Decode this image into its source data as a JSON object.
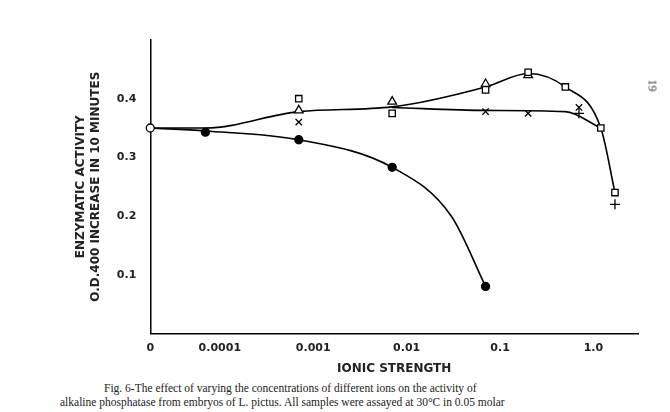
{
  "chart_data": {
    "type": "scatter",
    "x_label": "IONIC STRENGTH",
    "y_label": [
      "ENZYMATIC ACTIVITY",
      "O.D.400 INCREASE IN 10 MINUTES"
    ],
    "caption": [
      "Fig. 6-The effect of varying the concentrations of different ions on the activity of",
      "alkaline phosphatase from embryos of L. pictus.  All samples were assayed at 30°C in 0.05 molar"
    ],
    "page_number": "19",
    "log": "x",
    "grid": false,
    "color": "#000000",
    "xlim": [
      1.8e-05,
      3
    ],
    "xticks": [
      {
        "value": 1.8e-05,
        "label": "0"
      },
      0.0001,
      0.001,
      0.01,
      0.1,
      {
        "value": 1,
        "label": "1.0"
      }
    ],
    "ylim": [
      0,
      0.5
    ],
    "yticks": [
      0.1,
      0.2,
      0.3,
      0.4
    ],
    "series": [
      {
        "marker": "none",
        "line_style": "solid",
        "x": [
          1.8e-05,
          7e-05,
          0.0007,
          0.007,
          0.03,
          0.07
        ],
        "values": [
          0.35,
          0.345,
          0.33,
          0.283,
          0.2,
          0.08
        ]
      },
      {
        "marker": "none",
        "line_style": "solid",
        "x": [
          1.8e-05,
          7e-05,
          0.0007,
          0.007,
          0.07,
          0.2,
          0.5,
          1.2,
          1.7
        ],
        "values": [
          0.35,
          0.35,
          0.378,
          0.386,
          0.42,
          0.443,
          0.42,
          0.35,
          0.24
        ]
      },
      {
        "marker": "none",
        "line_style": "solid",
        "x": [
          0.007,
          0.07,
          0.5,
          1.2
        ],
        "values": [
          0.385,
          0.38,
          0.378,
          0.35
        ]
      },
      {
        "marker": "open_circle",
        "line_style": "none",
        "x": [
          1.8e-05
        ],
        "values": [
          0.35
        ]
      },
      {
        "marker": "filled_circle",
        "line_style": "none",
        "x": [
          7e-05,
          0.0007,
          0.007,
          0.07
        ],
        "values": [
          0.343,
          0.33,
          0.283,
          0.08
        ]
      },
      {
        "marker": "square",
        "line_style": "none",
        "x": [
          0.0007,
          0.007,
          0.07,
          0.2,
          0.5,
          1.2,
          1.7
        ],
        "values": [
          0.4,
          0.375,
          0.415,
          0.445,
          0.42,
          0.35,
          0.24
        ]
      },
      {
        "marker": "triangle",
        "line_style": "none",
        "x": [
          0.0007,
          0.007,
          0.07,
          0.2
        ],
        "values": [
          0.38,
          0.395,
          0.425,
          0.44
        ]
      },
      {
        "marker": "x",
        "line_style": "none",
        "x": [
          0.0007,
          0.07,
          0.2,
          0.7
        ],
        "values": [
          0.36,
          0.378,
          0.375,
          0.385
        ]
      },
      {
        "marker": "plus",
        "line_style": "none",
        "x": [
          0.7,
          1.7
        ],
        "values": [
          0.375,
          0.22
        ]
      }
    ]
  }
}
